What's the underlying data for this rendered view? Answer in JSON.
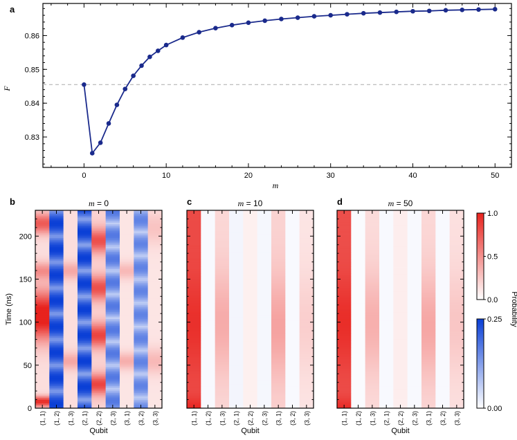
{
  "chart_data": [
    {
      "type": "line",
      "panel": "a",
      "xlabel": "m",
      "ylabel": "F",
      "xlim": [
        -5,
        52
      ],
      "ylim": [
        0.821,
        0.8695
      ],
      "xticks": [
        0,
        10,
        20,
        30,
        40,
        50
      ],
      "yticks": [
        0.83,
        0.84,
        0.85,
        0.86
      ],
      "ytick_labels": [
        "0.83",
        "0.84",
        "0.85",
        "0.86"
      ],
      "reference_line": 0.8455,
      "series": [
        {
          "name": "F",
          "color": "#1a2a8c",
          "x": [
            0,
            1,
            2,
            3,
            4,
            5,
            6,
            7,
            8,
            9,
            10,
            12,
            14,
            16,
            18,
            20,
            22,
            24,
            26,
            28,
            30,
            32,
            34,
            36,
            38,
            40,
            42,
            44,
            46,
            48,
            50
          ],
          "values": [
            0.8455,
            0.8252,
            0.8283,
            0.834,
            0.8395,
            0.8442,
            0.8481,
            0.8511,
            0.8537,
            0.8555,
            0.8572,
            0.8594,
            0.861,
            0.8622,
            0.8631,
            0.8638,
            0.8644,
            0.8649,
            0.8653,
            0.8657,
            0.866,
            0.8663,
            0.8666,
            0.8668,
            0.867,
            0.8672,
            0.8673,
            0.8675,
            0.8676,
            0.8677,
            0.8678
          ]
        }
      ]
    },
    {
      "type": "heatmap",
      "panel": "b",
      "title_var": "m",
      "title_value": "= 0",
      "xlabel": "Qubit",
      "ylabel": "Time (ns)",
      "categories": [
        "(1, 1)",
        "(1, 2)",
        "(1, 3)",
        "(2, 1)",
        "(2, 2)",
        "(2, 3)",
        "(3, 1)",
        "(3, 2)",
        "(3, 3)"
      ],
      "ylim": [
        0,
        230
      ],
      "yticks": [
        0,
        50,
        100,
        150,
        200
      ]
    },
    {
      "type": "heatmap",
      "panel": "c",
      "title_var": "m",
      "title_value": "= 10",
      "xlabel": "Qubit",
      "categories": [
        "(1, 1)",
        "(1, 2)",
        "(1, 3)",
        "(2, 1)",
        "(2, 2)",
        "(2, 3)",
        "(3, 1)",
        "(3, 2)",
        "(3, 3)"
      ],
      "ylim": [
        0,
        230
      ]
    },
    {
      "type": "heatmap",
      "panel": "d",
      "title_var": "m",
      "title_value": "= 50",
      "xlabel": "Qubit",
      "categories": [
        "(1, 1)",
        "(1, 2)",
        "(1, 3)",
        "(2, 1)",
        "(2, 2)",
        "(2, 3)",
        "(3, 1)",
        "(3, 2)",
        "(3, 3)"
      ],
      "ylim": [
        0,
        230
      ]
    }
  ],
  "colorbars": {
    "label": "Probability",
    "red": {
      "ticks": [
        "1.0",
        "0.5",
        "0.0"
      ],
      "min": 0,
      "max": 1,
      "color": "#e8231e"
    },
    "blue": {
      "ticks": [
        "0.25",
        "0.00"
      ],
      "min": 0,
      "max": 0.25,
      "color": "#0a3fd6"
    }
  },
  "panel_labels": {
    "a": "a",
    "b": "b",
    "c": "c",
    "d": "d"
  },
  "colors": {
    "line": "#1a2a8c",
    "dashed": "#aaaaaa",
    "red": "#e8231e",
    "blue": "#0a3fd6"
  }
}
